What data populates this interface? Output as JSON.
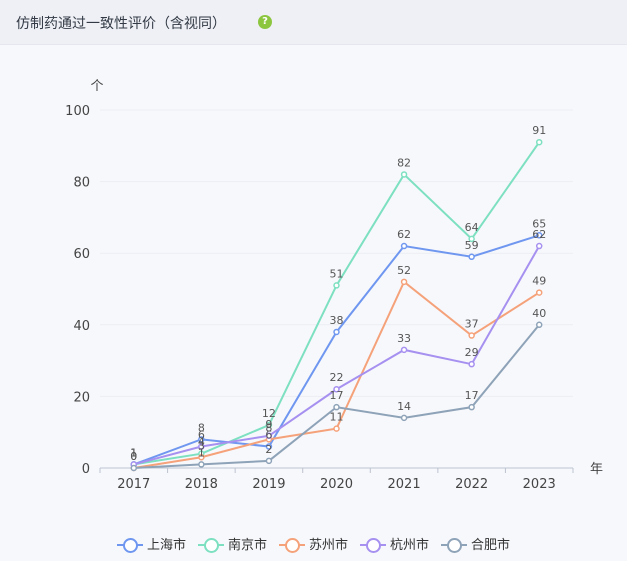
{
  "header": {
    "title": "仿制药通过一致性评价（含视同）",
    "help_icon": "?"
  },
  "chart_data": {
    "type": "line",
    "ylabel": "个",
    "xlabel": "年",
    "ylim": [
      0,
      100
    ],
    "yticks": [
      0,
      20,
      40,
      60,
      80,
      100
    ],
    "categories": [
      "2017",
      "2018",
      "2019",
      "2020",
      "2021",
      "2022",
      "2023"
    ],
    "series": [
      {
        "name": "上海市",
        "color": "#6f97f0",
        "values": [
          1,
          8,
          6,
          38,
          62,
          59,
          65
        ]
      },
      {
        "name": "南京市",
        "color": "#7de0c0",
        "values": [
          1,
          4,
          12,
          51,
          82,
          64,
          91
        ]
      },
      {
        "name": "苏州市",
        "color": "#f5a27a",
        "values": [
          0,
          3,
          8,
          11,
          52,
          37,
          49
        ]
      },
      {
        "name": "杭州市",
        "color": "#a690f0",
        "values": [
          1,
          6,
          9,
          22,
          33,
          29,
          62
        ]
      },
      {
        "name": "合肥市",
        "color": "#8ea3b8",
        "values": [
          0,
          1,
          2,
          17,
          14,
          17,
          40
        ]
      }
    ],
    "legend_position": "bottom"
  }
}
